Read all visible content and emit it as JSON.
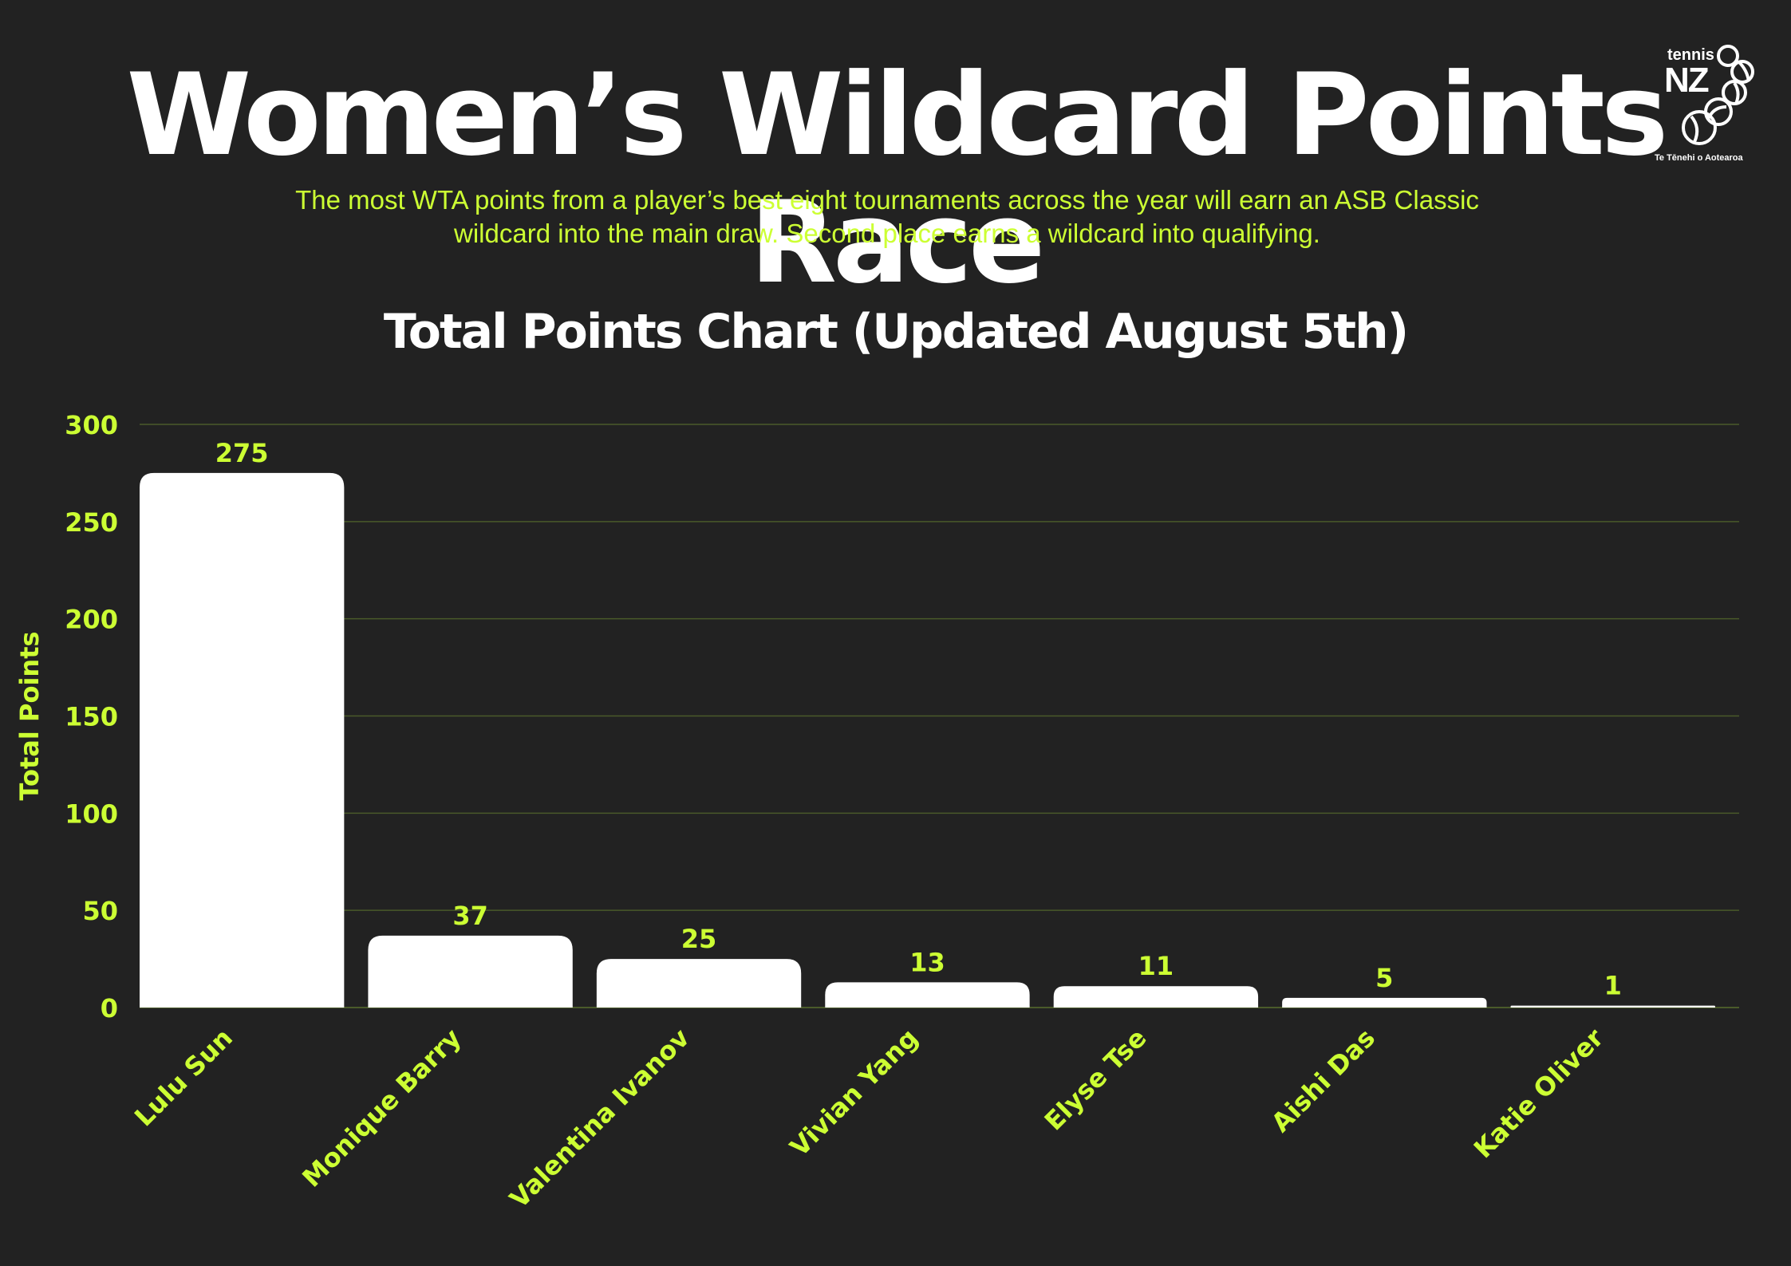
{
  "header": {
    "title": "Women’s Wildcard Points Race",
    "subtitle_line1": "The most WTA points from a player’s best eight tournaments across the year will earn an ASB Classic",
    "subtitle_line2": "wildcard into the main draw. Second place earns a wildcard into qualifying."
  },
  "logo": {
    "word_tennis": "tennis",
    "word_nz": "NZ",
    "tagline": "Te Tēnehi o Aotearoa",
    "icon": "tennis-balls-icon"
  },
  "colors": {
    "background": "#222222",
    "accent": "#ccff33",
    "bar": "#ffffff",
    "gridline": "#4a5a2a"
  },
  "chart_data": {
    "type": "bar",
    "title": "Total Points Chart (Updated August 5th)",
    "xlabel": "",
    "ylabel": "Total Points",
    "ylim": [
      0,
      300
    ],
    "yticks": [
      0,
      50,
      100,
      150,
      200,
      250,
      300
    ],
    "grid": true,
    "categories": [
      "Lulu Sun",
      "Monique Barry",
      "Valentina Ivanov",
      "Vivian Yang",
      "Elyse Tse",
      "Aishi Das",
      "Katie Oliver"
    ],
    "values": [
      275,
      37,
      25,
      13,
      11,
      5,
      1
    ]
  }
}
